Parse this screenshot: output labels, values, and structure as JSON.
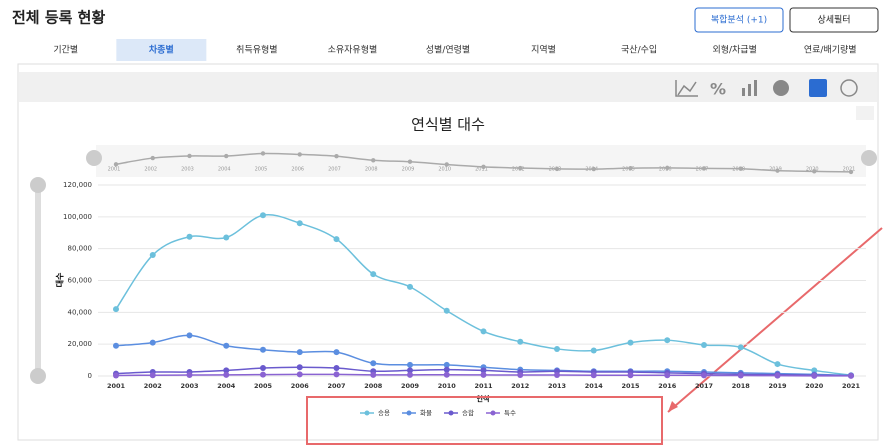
{
  "header": {
    "title": "전체 등록 현황",
    "buttons": [
      "복합분석 (+1)",
      "상세필터"
    ]
  },
  "tabs": {
    "items": [
      "기간별",
      "차종별",
      "취득유형별",
      "소유자유형별",
      "성별/연령별",
      "지역별",
      "국산/수입",
      "외형/차급별",
      "연료/배기량별"
    ],
    "active": 1
  },
  "chart_data": {
    "type": "line",
    "title": "연식별 대수",
    "x_label": "연식",
    "y_label": "대수",
    "categories": [
      "2001",
      "2002",
      "2003",
      "2004",
      "2005",
      "2006",
      "2007",
      "2008",
      "2009",
      "2010",
      "2011",
      "2012",
      "2013",
      "2014",
      "2015",
      "2016",
      "2017",
      "2018",
      "2019",
      "2020",
      "2021"
    ],
    "ylim": [
      0,
      120000
    ],
    "yticks": [
      {
        "value": 0,
        "label": "0"
      },
      {
        "value": 20000,
        "label": "20,000"
      },
      {
        "value": 40000,
        "label": "40,000"
      },
      {
        "value": 60000,
        "label": "60,000"
      },
      {
        "value": 80000,
        "label": "80,000"
      },
      {
        "value": 100000,
        "label": "100,000"
      },
      {
        "value": 120000,
        "label": "120,000"
      }
    ],
    "grid": true,
    "legend": "bottom",
    "series": [
      {
        "name": "승용",
        "color": "#6cc0dc",
        "values": [
          42000,
          76000,
          87500,
          87000,
          101000,
          96000,
          86000,
          64000,
          56000,
          41000,
          28000,
          21500,
          17000,
          16000,
          21000,
          22500,
          19500,
          18000,
          7500,
          3500,
          500
        ]
      },
      {
        "name": "화물",
        "color": "#5b8ee0",
        "values": [
          19000,
          21000,
          25500,
          19000,
          16500,
          15000,
          15000,
          8000,
          7000,
          7000,
          5500,
          4000,
          3500,
          3000,
          3000,
          3000,
          2500,
          2000,
          1500,
          1000,
          300
        ]
      },
      {
        "name": "승합",
        "color": "#6a5acd",
        "values": [
          1500,
          2500,
          2500,
          3500,
          5000,
          5500,
          5000,
          3000,
          3500,
          4000,
          3500,
          2500,
          3000,
          2500,
          2500,
          2000,
          1500,
          1000,
          800,
          500,
          200
        ]
      },
      {
        "name": "특수",
        "color": "#8a63d2",
        "values": [
          300,
          500,
          600,
          700,
          900,
          1000,
          1000,
          700,
          700,
          800,
          700,
          600,
          600,
          500,
          500,
          500,
          400,
          300,
          200,
          100,
          50
        ]
      }
    ]
  }
}
